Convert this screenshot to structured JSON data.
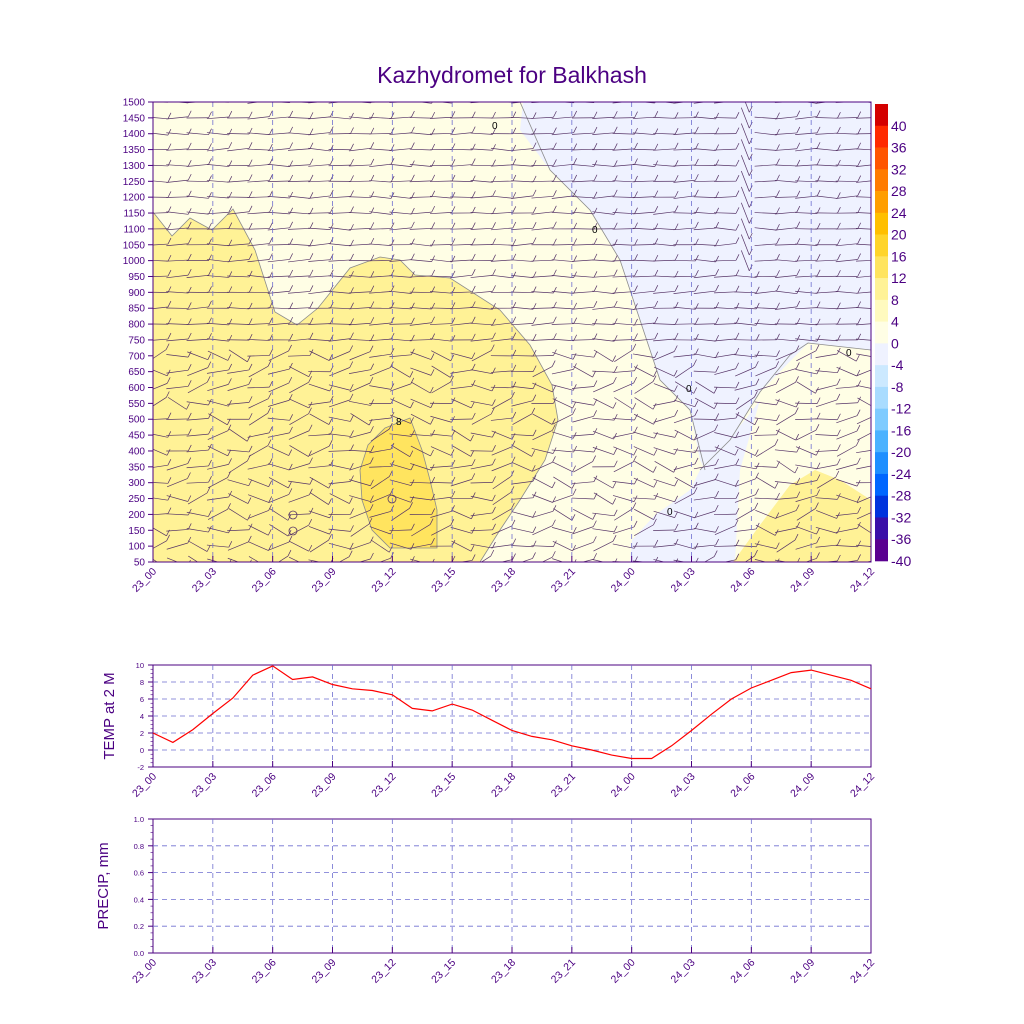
{
  "title": "Kazhydromet for Balkhash",
  "colors": {
    "axis": "#4b0082",
    "grid": "#6f6fd0",
    "line": "#ff0000",
    "contour": "#8c8c8c",
    "barb": "#553366"
  },
  "time_labels": [
    "23_00",
    "23_03",
    "23_06",
    "23_09",
    "23_12",
    "23_15",
    "23_18",
    "23_21",
    "24_00",
    "24_03",
    "24_06",
    "24_09",
    "24_12"
  ],
  "chart_data": [
    {
      "type": "heatmap",
      "title": "Kazhydromet for Balkhash",
      "xlabel": "",
      "ylabel": "",
      "x_ticks": [
        "23_00",
        "23_03",
        "23_06",
        "23_09",
        "23_12",
        "23_15",
        "23_18",
        "23_21",
        "24_00",
        "24_03",
        "24_06",
        "24_09",
        "24_12"
      ],
      "y_ticks": [
        50,
        100,
        150,
        200,
        250,
        300,
        350,
        400,
        450,
        500,
        550,
        600,
        650,
        700,
        750,
        800,
        850,
        900,
        950,
        1000,
        1050,
        1100,
        1150,
        1200,
        1250,
        1300,
        1350,
        1400,
        1450,
        1500
      ],
      "ylim": [
        50,
        1500
      ],
      "colorbar": {
        "labels": [
          "40",
          "36",
          "32",
          "28",
          "24",
          "20",
          "16",
          "12",
          "8",
          "4",
          "0",
          "-4",
          "-8",
          "-12",
          "-16",
          "-20",
          "-24",
          "-28",
          "-32",
          "-36",
          "-40"
        ],
        "colors": [
          "#d40000",
          "#ff2a00",
          "#ff5500",
          "#ff7b00",
          "#ff9e00",
          "#ffbf00",
          "#ffd42a",
          "#ffe45f",
          "#fff296",
          "#fffabf",
          "#fffee5",
          "#eff2ff",
          "#cce9ff",
          "#a9dcff",
          "#7ecbff",
          "#4bb2ff",
          "#1e8fff",
          "#0066ff",
          "#0033dd",
          "#3a0fa8",
          "#5a0090"
        ]
      },
      "contour_labels": [
        "0",
        "0",
        "0",
        "0",
        "0",
        "8",
        "0"
      ],
      "notes": "Temperature cross-section with wind barbs"
    },
    {
      "type": "line",
      "ylabel": "TEMP at 2 M",
      "x": [
        "23_00",
        "23_01",
        "23_02",
        "23_03",
        "23_04",
        "23_05",
        "23_06",
        "23_07",
        "23_08",
        "23_09",
        "23_10",
        "23_11",
        "23_12",
        "23_13",
        "23_14",
        "23_15",
        "23_16",
        "23_17",
        "23_18",
        "23_19",
        "23_20",
        "23_21",
        "23_22",
        "23_23",
        "24_00",
        "24_01",
        "24_02",
        "24_03",
        "24_04",
        "24_05",
        "24_06",
        "24_07",
        "24_08",
        "24_09",
        "24_10",
        "24_11",
        "24_12"
      ],
      "y": [
        2.0,
        0.9,
        2.4,
        4.3,
        6.1,
        8.8,
        9.9,
        8.3,
        8.6,
        7.7,
        7.2,
        7.0,
        6.5,
        4.9,
        4.6,
        5.4,
        4.7,
        3.5,
        2.3,
        1.6,
        1.2,
        0.5,
        0.0,
        -0.6,
        -1.0,
        -1.0,
        0.5,
        2.3,
        4.2,
        6.0,
        7.3,
        8.2,
        9.1,
        9.4,
        8.8,
        8.2,
        7.2
      ],
      "y_ticks": [
        "10",
        "8",
        "6",
        "4",
        "2",
        "0",
        "-2"
      ],
      "ylim": [
        -2,
        10
      ],
      "x_ticks": [
        "23_00",
        "23_03",
        "23_06",
        "23_09",
        "23_12",
        "23_15",
        "23_18",
        "23_21",
        "24_00",
        "24_03",
        "24_06",
        "24_09",
        "24_12"
      ]
    },
    {
      "type": "line",
      "ylabel": "PRECIP, mm",
      "x": [],
      "y": [],
      "y_ticks": [
        "1.0",
        "0.8",
        "0.6",
        "0.4",
        "0.2",
        "0.0"
      ],
      "ylim": [
        0,
        1
      ],
      "x_ticks": [
        "23_00",
        "23_03",
        "23_06",
        "23_09",
        "23_12",
        "23_15",
        "23_18",
        "23_21",
        "24_00",
        "24_03",
        "24_06",
        "24_09",
        "24_12"
      ]
    }
  ]
}
